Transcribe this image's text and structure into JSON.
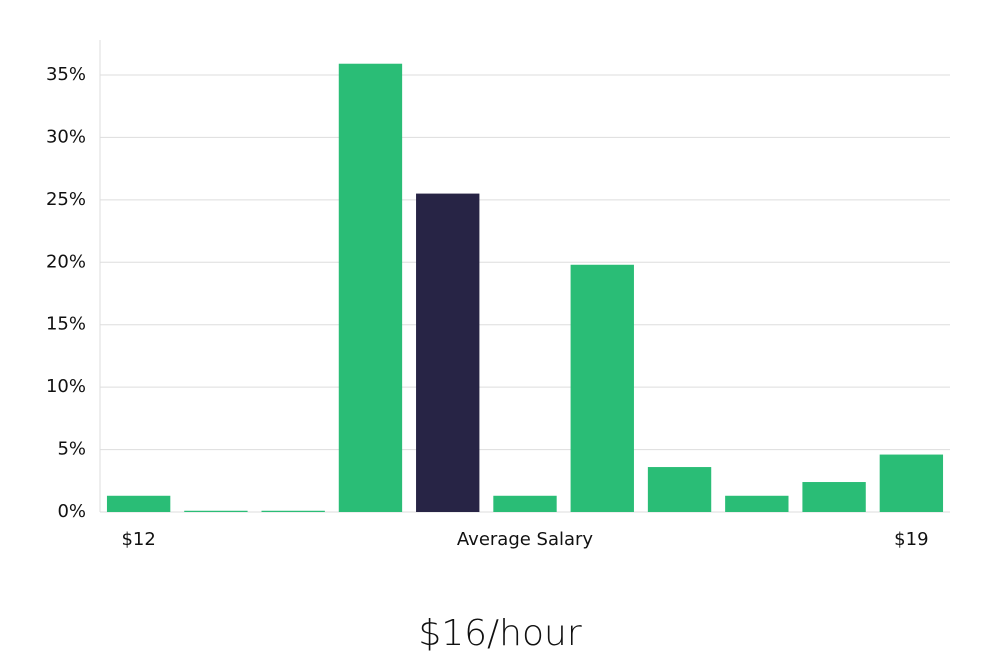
{
  "chart_data": {
    "type": "bar",
    "subtitle": "$16/hour",
    "x_label": "Average Salary",
    "categories": [
      "$12",
      null,
      null,
      null,
      null,
      null,
      null,
      null,
      null,
      null,
      "$19"
    ],
    "values": [
      1.3,
      0.1,
      0.1,
      35.9,
      25.5,
      1.3,
      19.8,
      3.6,
      1.3,
      2.4,
      4.6
    ],
    "colors": [
      "#2abd76",
      "#2abd76",
      "#2abd76",
      "#2abd76",
      "#272445",
      "#2abd76",
      "#2abd76",
      "#2abd76",
      "#2abd76",
      "#2abd76",
      "#2abd76"
    ],
    "ylim": [
      0,
      37.8
    ],
    "yticks": [
      {
        "value": 0,
        "label": "0%"
      },
      {
        "value": 5,
        "label": "5%"
      },
      {
        "value": 10,
        "label": "10%"
      },
      {
        "value": 15,
        "label": "15%"
      },
      {
        "value": 20,
        "label": "20%"
      },
      {
        "value": 25,
        "label": "25%"
      },
      {
        "value": 30,
        "label": "30%"
      },
      {
        "value": 35,
        "label": "35%"
      }
    ],
    "grid": true
  }
}
